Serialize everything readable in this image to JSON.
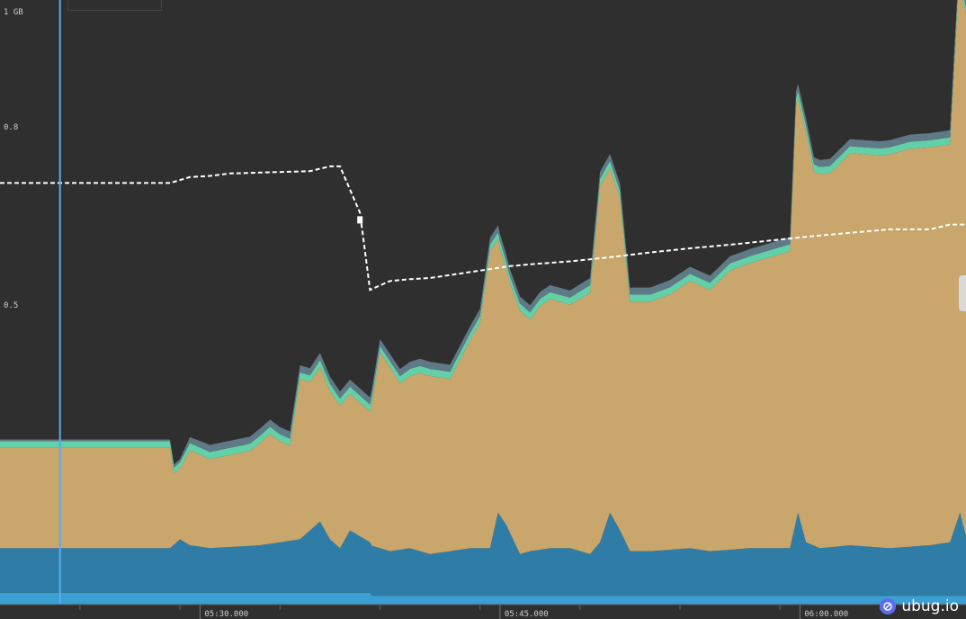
{
  "chart_data": {
    "type": "area",
    "stacked": true,
    "ylim": [
      0,
      1.0
    ],
    "y_ticks": [
      {
        "value": 1.0,
        "label": "1 GB"
      },
      {
        "value": 0.8,
        "label": "0.8"
      },
      {
        "value": 0.5,
        "label": "0.5"
      }
    ],
    "x_ticks": [
      {
        "value": 5.5,
        "label": "05:30.000"
      },
      {
        "value": 20.5,
        "label": "05:45.000"
      },
      {
        "value": 35.5,
        "label": "06:00.000"
      }
    ],
    "x_range": [
      -4.5,
      43.8
    ],
    "series": [
      {
        "key": "s1",
        "color": "#3a9fd3",
        "x": [
          -4.5,
          14.0,
          14.1,
          43.8
        ],
        "values": [
          0.02,
          0.02,
          0.015,
          0.015
        ]
      },
      {
        "key": "s2",
        "color": "#2f7da7",
        "x": [
          -4.5,
          4.0,
          4.5,
          5.0,
          6.0,
          8.5,
          10.5,
          11.5,
          12.0,
          12.5,
          13.0,
          14.0,
          15.0,
          16.0,
          17.0,
          18.0,
          19.0,
          20.0,
          20.4,
          20.8,
          21.5,
          22.0,
          23.0,
          24.0,
          25.0,
          25.5,
          26.0,
          26.5,
          27.0,
          28.0,
          30.0,
          31.0,
          33.0,
          35.0,
          35.4,
          35.8,
          36.5,
          38.0,
          40.0,
          42.0,
          43.0,
          43.5,
          43.8
        ],
        "values": [
          0.075,
          0.075,
          0.09,
          0.08,
          0.075,
          0.08,
          0.09,
          0.12,
          0.09,
          0.075,
          0.105,
          0.085,
          0.075,
          0.08,
          0.07,
          0.075,
          0.08,
          0.08,
          0.14,
          0.12,
          0.07,
          0.075,
          0.08,
          0.08,
          0.07,
          0.09,
          0.14,
          0.11,
          0.075,
          0.075,
          0.08,
          0.075,
          0.08,
          0.08,
          0.14,
          0.09,
          0.08,
          0.085,
          0.08,
          0.085,
          0.09,
          0.14,
          0.1
        ]
      },
      {
        "key": "s3",
        "color": "#c9a66b",
        "x": [
          -4.5,
          4.0,
          4.2,
          4.5,
          5.0,
          6.0,
          8.0,
          9.0,
          9.5,
          10.0,
          10.5,
          11.0,
          11.5,
          12.0,
          12.5,
          13.0,
          14.0,
          14.5,
          15.0,
          15.5,
          16.0,
          16.5,
          17.0,
          18.0,
          19.5,
          20.0,
          20.5,
          21.0,
          21.5,
          22.0,
          22.5,
          23.0,
          24.0,
          25.0,
          25.5,
          26.0,
          26.5,
          27.0,
          28.0,
          29.0,
          30.0,
          31.0,
          32.0,
          33.0,
          35.0,
          35.3,
          35.8,
          36.2,
          37.0,
          38.0,
          39.5,
          41.0,
          43.0,
          43.4,
          43.8
        ],
        "values": [
          0.17,
          0.17,
          0.12,
          0.12,
          0.16,
          0.15,
          0.16,
          0.185,
          0.17,
          0.16,
          0.27,
          0.25,
          0.26,
          0.25,
          0.24,
          0.23,
          0.22,
          0.33,
          0.31,
          0.28,
          0.29,
          0.3,
          0.3,
          0.29,
          0.38,
          0.5,
          0.45,
          0.42,
          0.41,
          0.39,
          0.41,
          0.42,
          0.41,
          0.44,
          0.6,
          0.58,
          0.56,
          0.42,
          0.42,
          0.43,
          0.45,
          0.44,
          0.47,
          0.48,
          0.5,
          0.7,
          0.69,
          0.63,
          0.63,
          0.66,
          0.66,
          0.67,
          0.67,
          0.88,
          0.88
        ]
      },
      {
        "key": "s4",
        "color": "#63d0a8",
        "x": [
          -4.5,
          4.0,
          4.2,
          4.5,
          5.0,
          6.0,
          8.0,
          9.0,
          9.5,
          10.0,
          10.5,
          11.0,
          11.5,
          12.0,
          12.5,
          13.0,
          14.0,
          14.5,
          15.0,
          15.5,
          16.0,
          16.5,
          17.0,
          18.0,
          19.5,
          20.0,
          20.5,
          21.0,
          21.5,
          22.0,
          22.5,
          23.0,
          24.0,
          25.0,
          25.5,
          26.0,
          26.5,
          27.0,
          28.0,
          29.0,
          30.0,
          31.0,
          32.0,
          33.0,
          35.0,
          35.3,
          35.8,
          36.2,
          37.0,
          38.0,
          39.5,
          41.0,
          43.0,
          43.4,
          43.8
        ],
        "values": [
          0.01,
          0.01,
          0.01,
          0.01,
          0.012,
          0.012,
          0.012,
          0.012,
          0.012,
          0.012,
          0.011,
          0.011,
          0.012,
          0.012,
          0.012,
          0.012,
          0.012,
          0.01,
          0.01,
          0.012,
          0.012,
          0.012,
          0.012,
          0.012,
          0.011,
          0.011,
          0.012,
          0.012,
          0.012,
          0.012,
          0.012,
          0.011,
          0.012,
          0.013,
          0.012,
          0.012,
          0.012,
          0.012,
          0.012,
          0.012,
          0.012,
          0.012,
          0.012,
          0.012,
          0.012,
          0.012,
          0.012,
          0.012,
          0.012,
          0.012,
          0.012,
          0.012,
          0.012,
          0.013,
          0.013
        ]
      },
      {
        "key": "s5",
        "color": "#5f7a86",
        "x": [
          -4.5,
          4.0,
          4.2,
          4.5,
          5.0,
          6.0,
          8.0,
          9.0,
          9.5,
          10.0,
          10.5,
          11.0,
          11.5,
          12.0,
          12.5,
          13.0,
          14.0,
          14.5,
          15.0,
          15.5,
          16.0,
          16.5,
          17.0,
          18.0,
          19.5,
          20.0,
          20.5,
          21.0,
          21.5,
          22.0,
          22.5,
          23.0,
          24.0,
          25.0,
          25.5,
          26.0,
          26.5,
          27.0,
          28.0,
          29.0,
          30.0,
          31.0,
          32.0,
          33.0,
          35.0,
          35.3,
          35.8,
          36.2,
          37.0,
          38.0,
          39.5,
          41.0,
          43.0,
          43.4,
          43.8
        ],
        "values": [
          0.003,
          0.003,
          0.005,
          0.005,
          0.01,
          0.012,
          0.012,
          0.012,
          0.012,
          0.012,
          0.012,
          0.012,
          0.012,
          0.012,
          0.012,
          0.012,
          0.012,
          0.012,
          0.012,
          0.012,
          0.012,
          0.012,
          0.012,
          0.012,
          0.012,
          0.012,
          0.012,
          0.012,
          0.012,
          0.012,
          0.012,
          0.012,
          0.012,
          0.012,
          0.012,
          0.012,
          0.012,
          0.012,
          0.012,
          0.012,
          0.012,
          0.012,
          0.012,
          0.012,
          0.012,
          0.012,
          0.012,
          0.012,
          0.012,
          0.012,
          0.012,
          0.012,
          0.012,
          0.012,
          0.012
        ]
      }
    ],
    "dashed_line": {
      "color": "#ffffff",
      "x": [
        -4.5,
        4.0,
        5.0,
        6.0,
        7.0,
        9.0,
        11.0,
        12.0,
        12.5,
        13.5,
        14.0,
        15.0,
        16.0,
        17.0,
        18.0,
        19.0,
        20.0,
        21.0,
        22.0,
        24.0,
        26.0,
        28.0,
        30.0,
        32.0,
        34.0,
        36.0,
        38.0,
        40.0,
        42.0,
        43.0,
        43.8
      ],
      "values": [
        0.71,
        0.71,
        0.72,
        0.722,
        0.726,
        0.728,
        0.73,
        0.738,
        0.738,
        0.66,
        0.53,
        0.545,
        0.548,
        0.55,
        0.555,
        0.56,
        0.565,
        0.57,
        0.573,
        0.578,
        0.585,
        0.593,
        0.6,
        0.606,
        0.613,
        0.62,
        0.626,
        0.632,
        0.632,
        0.64,
        0.64
      ]
    },
    "cursor_x": -1.5,
    "grid": false
  },
  "watermark": {
    "text": "ubug.io",
    "icon": "bug-icon"
  }
}
